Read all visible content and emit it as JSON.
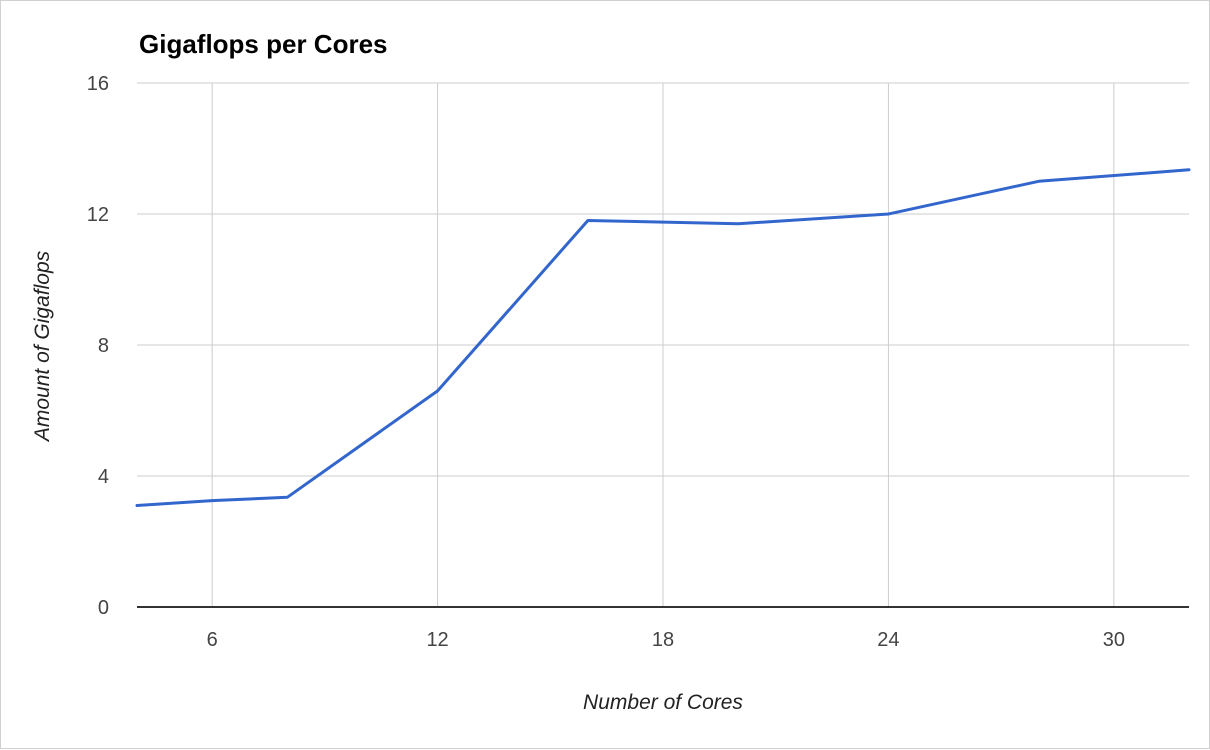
{
  "colors": {
    "line": "#3366cc",
    "grid": "#cccccc",
    "baseline": "#333333",
    "background": "#ffffff"
  },
  "chart_data": {
    "type": "line",
    "title": "Gigaflops per Cores",
    "xlabel": "Number of Cores",
    "ylabel": "Amount of Gigaflops",
    "xlim": [
      4,
      32
    ],
    "ylim": [
      0,
      16
    ],
    "x_ticks": [
      "6",
      "12",
      "18",
      "24",
      "30"
    ],
    "y_ticks": [
      "0",
      "4",
      "8",
      "12",
      "16"
    ],
    "grid": true,
    "legend": "none",
    "series": [
      {
        "x": [
          4,
          6,
          8,
          12,
          16,
          20,
          24,
          28,
          32
        ],
        "values": [
          3.1,
          3.25,
          3.35,
          6.6,
          11.8,
          11.7,
          12.0,
          13.0,
          13.35
        ]
      }
    ]
  }
}
